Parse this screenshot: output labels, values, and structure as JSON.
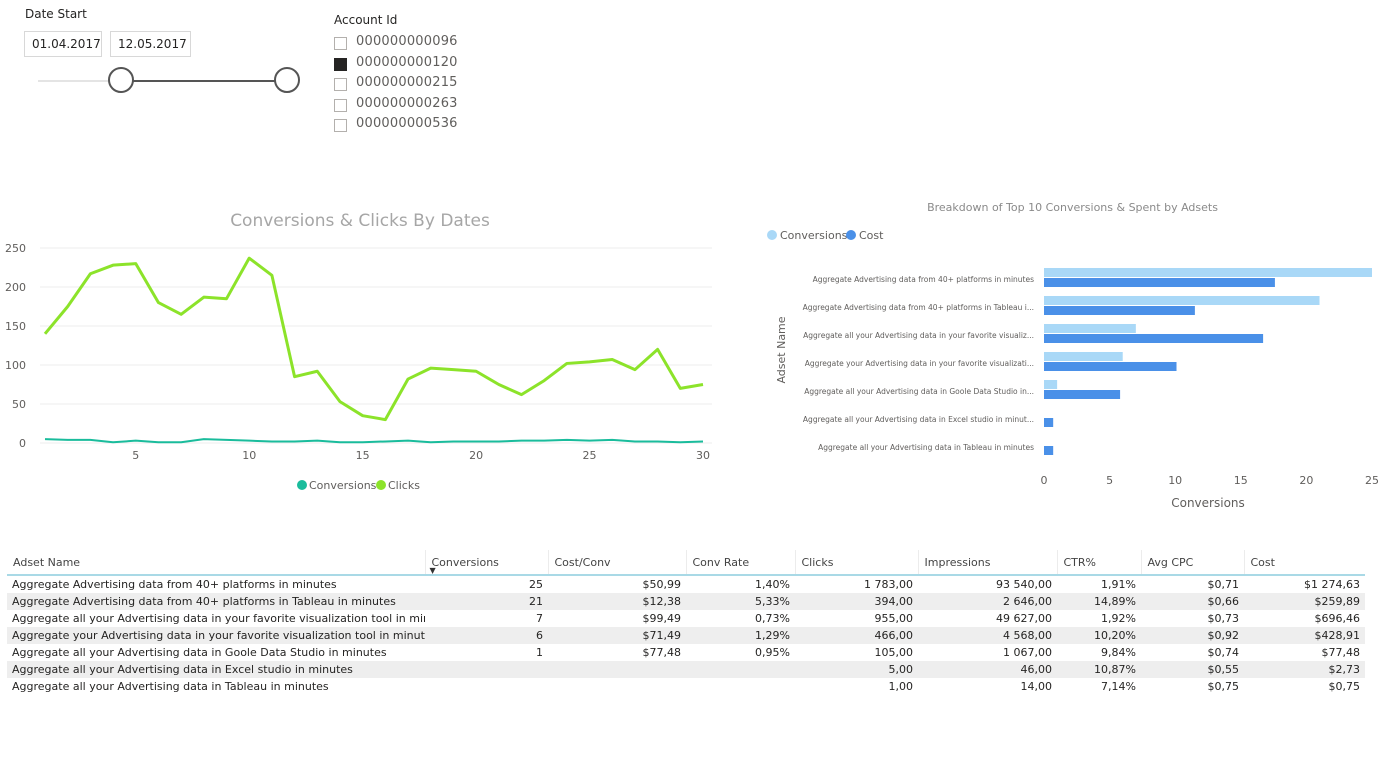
{
  "date_slicer": {
    "title": "Date Start",
    "start": "01.04.2017",
    "end": "12.05.2017"
  },
  "account_slicer": {
    "title": "Account Id",
    "items": [
      {
        "label": "000000000096",
        "checked": false
      },
      {
        "label": "000000000120",
        "checked": true
      },
      {
        "label": "000000000215",
        "checked": false
      },
      {
        "label": "000000000263",
        "checked": false
      },
      {
        "label": "000000000536",
        "checked": false
      }
    ]
  },
  "colors": {
    "conversions_line": "#1abc9c",
    "clicks_line": "#8ce32a",
    "bar_conversions": "#a9d8f7",
    "bar_cost": "#4a90e8"
  },
  "line_chart": {
    "title": "Conversions & Clicks By Dates",
    "legend": [
      "Conversions",
      "Clicks"
    ],
    "chart_data": {
      "type": "line",
      "x": [
        1,
        2,
        3,
        4,
        5,
        6,
        7,
        8,
        9,
        10,
        11,
        12,
        13,
        14,
        15,
        16,
        17,
        18,
        19,
        20,
        21,
        22,
        23,
        24,
        25,
        26,
        27,
        28,
        29,
        30
      ],
      "series": [
        {
          "name": "Conversions",
          "values": [
            5,
            4,
            4,
            1,
            3,
            1,
            1,
            5,
            4,
            3,
            2,
            2,
            3,
            1,
            1,
            2,
            3,
            1,
            2,
            2,
            2,
            3,
            3,
            4,
            3,
            4,
            2,
            2,
            1,
            2
          ]
        },
        {
          "name": "Clicks",
          "values": [
            140,
            175,
            217,
            228,
            230,
            180,
            165,
            187,
            185,
            237,
            215,
            85,
            92,
            53,
            35,
            30,
            82,
            96,
            94,
            92,
            75,
            62,
            80,
            102,
            104,
            107,
            94,
            120,
            70,
            75
          ]
        }
      ],
      "xticks": [
        5,
        10,
        15,
        20,
        25,
        30
      ],
      "yticks": [
        0,
        50,
        100,
        150,
        200,
        250
      ],
      "xlim": [
        1,
        30
      ],
      "ylim": [
        0,
        250
      ]
    }
  },
  "bar_chart": {
    "title": "Breakdown of Top 10 Conversions & Spent by Adsets",
    "legend": [
      "Conversions",
      "Cost"
    ],
    "ylabel": "Adset Name",
    "xlabel": "Conversions",
    "chart_data": {
      "type": "bar",
      "orientation": "horizontal",
      "categories": [
        "Aggregate Advertising data from 40+ platforms in minutes",
        "Aggregate Advertising data from 40+ platforms in Tableau i...",
        "Aggregate all your Advertising data in your favorite visualiz...",
        "Aggregate your Advertising data in your favorite visualizati...",
        "Aggregate all your Advertising data in Goole Data Studio in...",
        "Aggregate all your Advertising data in Excel studio in minut...",
        "Aggregate all your Advertising data in Tableau in minutes"
      ],
      "series": [
        {
          "name": "Conversions",
          "values": [
            25,
            21,
            7,
            6,
            1,
            0,
            0
          ]
        },
        {
          "name": "Cost",
          "values": [
            17.6,
            11.5,
            16.7,
            10.1,
            5.8,
            0.7,
            0.7
          ]
        }
      ],
      "xticks": [
        0,
        5,
        10,
        15,
        20,
        25
      ],
      "xlim": [
        0,
        25
      ]
    }
  },
  "table": {
    "columns": [
      "Adset Name",
      "Conversions",
      "Cost/Conv",
      "Conv Rate",
      "Clicks",
      "Impressions",
      "CTR%",
      "Avg CPC",
      "Cost"
    ],
    "rows": [
      [
        "Aggregate Advertising data from 40+ platforms in minutes",
        "25",
        "$50,99",
        "1,40%",
        "1 783,00",
        "93 540,00",
        "1,91%",
        "$0,71",
        "$1 274,63"
      ],
      [
        "Aggregate Advertising data from 40+ platforms in Tableau in minutes",
        "21",
        "$12,38",
        "5,33%",
        "394,00",
        "2 646,00",
        "14,89%",
        "$0,66",
        "$259,89"
      ],
      [
        "Aggregate all your Advertising data in your favorite visualization tool in minutes",
        "7",
        "$99,49",
        "0,73%",
        "955,00",
        "49 627,00",
        "1,92%",
        "$0,73",
        "$696,46"
      ],
      [
        "Aggregate your Advertising data in your favorite visualization tool in minutes",
        "6",
        "$71,49",
        "1,29%",
        "466,00",
        "4 568,00",
        "10,20%",
        "$0,92",
        "$428,91"
      ],
      [
        "Aggregate all your Advertising data in Goole Data Studio in minutes",
        "1",
        "$77,48",
        "0,95%",
        "105,00",
        "1 067,00",
        "9,84%",
        "$0,74",
        "$77,48"
      ],
      [
        "Aggregate all your Advertising data in Excel studio in minutes",
        "",
        "",
        "",
        "5,00",
        "46,00",
        "10,87%",
        "$0,55",
        "$2,73"
      ],
      [
        "Aggregate all your Advertising data in Tableau in minutes",
        "",
        "",
        "",
        "1,00",
        "14,00",
        "7,14%",
        "$0,75",
        "$0,75"
      ]
    ]
  }
}
